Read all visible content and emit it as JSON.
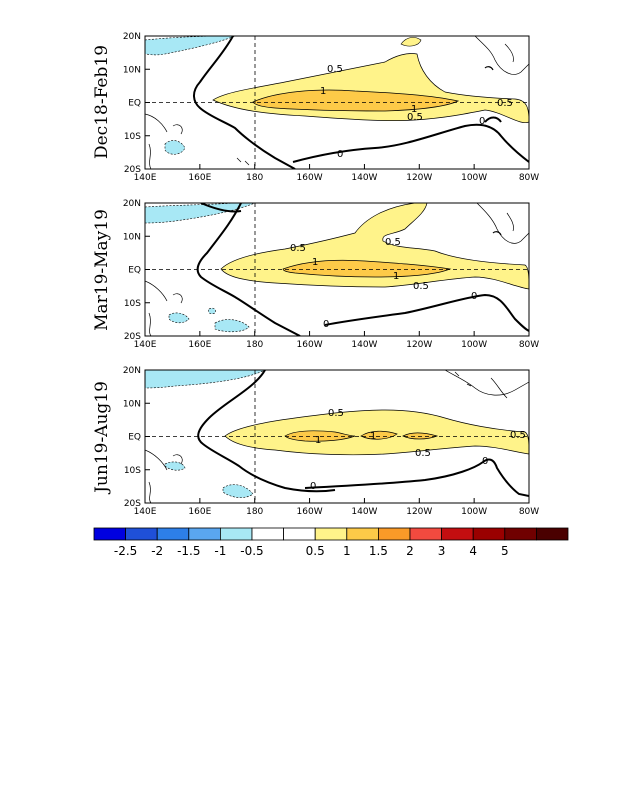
{
  "panels": [
    {
      "title": "Dec18-Feb19",
      "contour_labels": [
        "0.5",
        "1",
        "1",
        "0.5",
        "0.5",
        "0",
        "0"
      ]
    },
    {
      "title": "Mar19-May19",
      "contour_labels": [
        "0.5",
        "1",
        "1",
        "0.5",
        "0.5",
        "0",
        "0"
      ]
    },
    {
      "title": "Jun19-Aug19",
      "contour_labels": [
        "0.5",
        "1",
        "1",
        "0.5",
        "0.5",
        "0",
        "0"
      ]
    }
  ],
  "lat_ticks": [
    "20N",
    "10N",
    "EQ",
    "10S",
    "20S"
  ],
  "lon_ticks": [
    "140E",
    "160E",
    "180",
    "160W",
    "140W",
    "120W",
    "100W",
    "80W"
  ],
  "colorbar": {
    "colors": [
      "#0000e0",
      "#1f50d8",
      "#2d7fe8",
      "#5aa6f0",
      "#a8e8f5",
      "#ffffff",
      "#ffffff",
      "#fff38a",
      "#fdca48",
      "#f99a28",
      "#f24a3f",
      "#c30e10",
      "#9a0000",
      "#700000",
      "#4a0000"
    ],
    "labels": [
      "-2.5",
      "-2",
      "-1.5",
      "-1",
      "-0.5",
      "0.5",
      "1",
      "1.5",
      "2",
      "3",
      "4",
      "5"
    ]
  },
  "colors": {
    "light_yellow": "#fff38a",
    "orange": "#fdca48",
    "light_blue": "#a8e8f5"
  }
}
